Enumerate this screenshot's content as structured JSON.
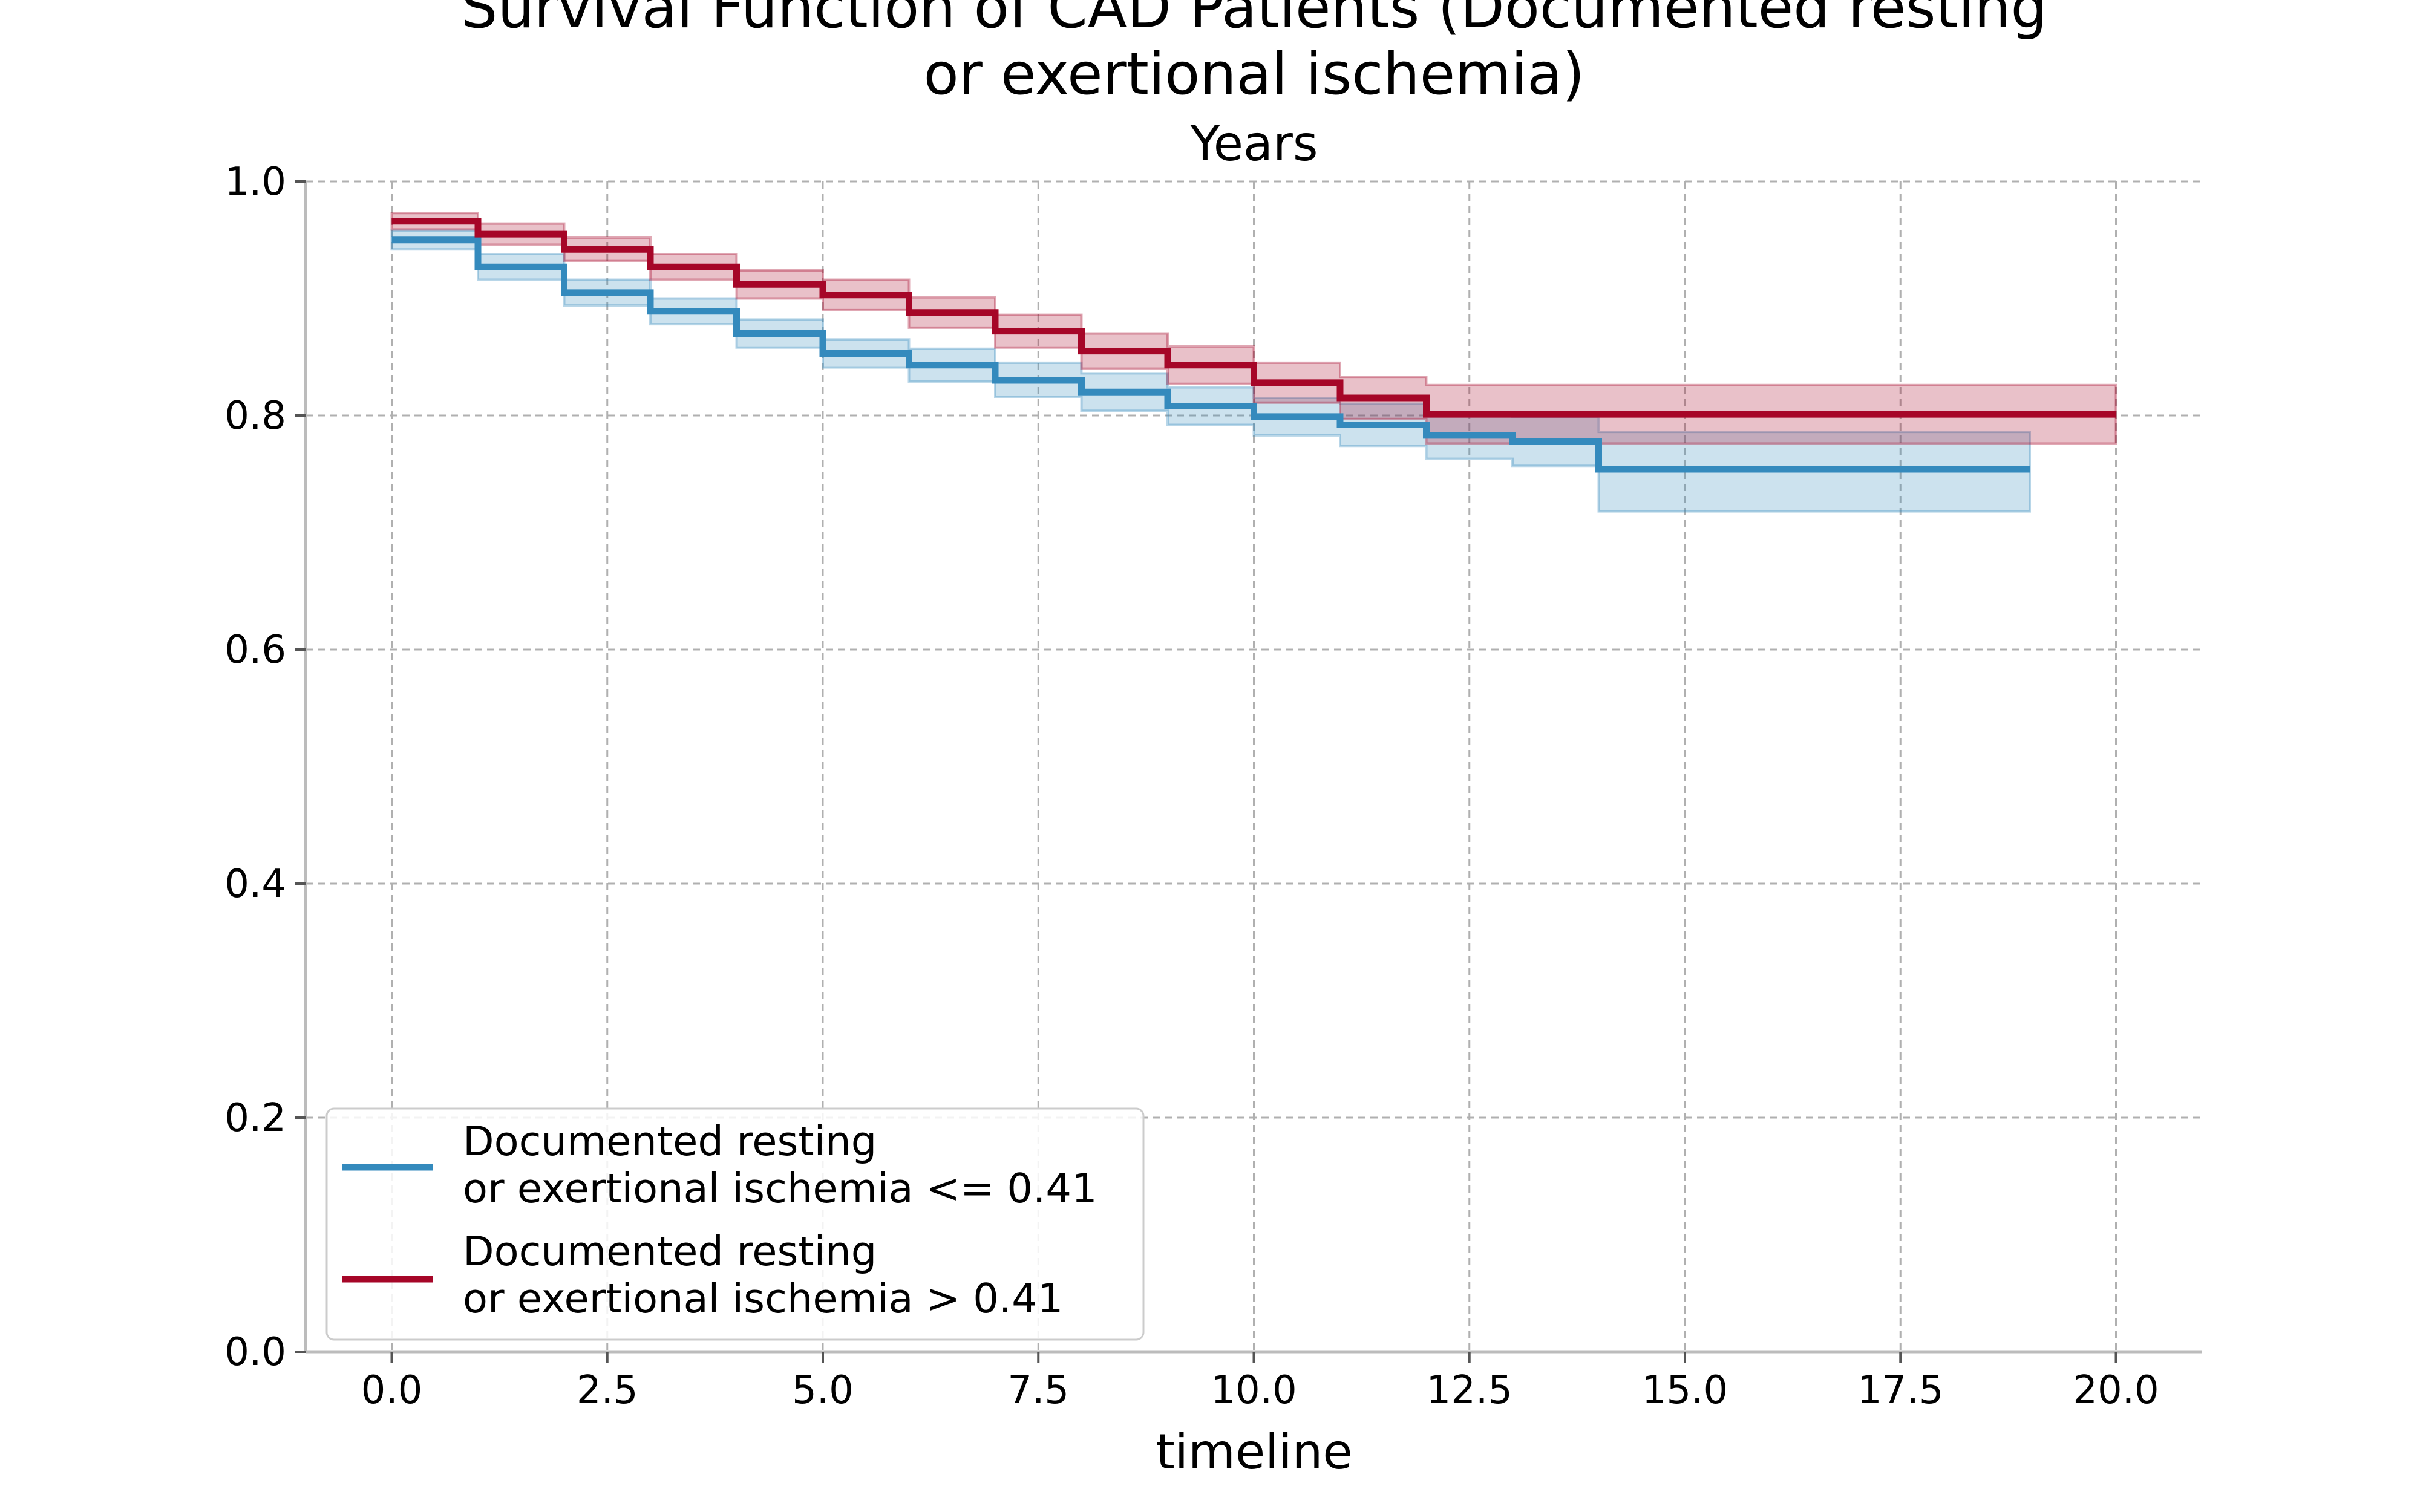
{
  "chart_data": {
    "type": "line",
    "title_lines": [
      "Survival Function of CAD Patients (Documented resting",
      "or exertional ischemia)"
    ],
    "subtitle": "Years",
    "xlabel": "timeline",
    "ylabel": "",
    "xlim": [
      -1,
      21
    ],
    "ylim": [
      0,
      1.0
    ],
    "xticks": [
      0.0,
      2.5,
      5.0,
      7.5,
      10.0,
      12.5,
      15.0,
      17.5,
      20.0
    ],
    "xtick_labels": [
      "0.0",
      "2.5",
      "5.0",
      "7.5",
      "10.0",
      "12.5",
      "15.0",
      "17.5",
      "20.0"
    ],
    "yticks": [
      0.0,
      0.2,
      0.4,
      0.6,
      0.8,
      1.0
    ],
    "ytick_labels": [
      "0.0",
      "0.2",
      "0.4",
      "0.6",
      "0.8",
      "1.0"
    ],
    "grid": true,
    "legend_position": "lower-left",
    "series": [
      {
        "name": "Documented resting\nor exertional ischemia <= 0.41",
        "color": "#348abd",
        "x": [
          0,
          1,
          2,
          3,
          4,
          5,
          6,
          7,
          8,
          9,
          10,
          11,
          12,
          13,
          14,
          19
        ],
        "y": [
          0.95,
          0.927,
          0.905,
          0.889,
          0.87,
          0.853,
          0.843,
          0.83,
          0.82,
          0.808,
          0.799,
          0.792,
          0.783,
          0.778,
          0.754,
          0.754
        ],
        "ci_lower": [
          0.942,
          0.916,
          0.894,
          0.878,
          0.858,
          0.841,
          0.829,
          0.816,
          0.804,
          0.792,
          0.783,
          0.774,
          0.763,
          0.757,
          0.718,
          0.718
        ],
        "ci_upper": [
          0.958,
          0.938,
          0.916,
          0.9,
          0.882,
          0.865,
          0.857,
          0.845,
          0.836,
          0.824,
          0.815,
          0.81,
          0.803,
          0.799,
          0.786,
          0.786
        ]
      },
      {
        "name": "Documented resting\nor exertional ischemia > 0.41",
        "color": "#a60628",
        "x": [
          0,
          1,
          2,
          3,
          4,
          5,
          6,
          7,
          8,
          9,
          10,
          11,
          12,
          20
        ],
        "y": [
          0.966,
          0.955,
          0.942,
          0.927,
          0.912,
          0.903,
          0.888,
          0.872,
          0.855,
          0.843,
          0.828,
          0.815,
          0.801,
          0.801
        ],
        "ci_lower": [
          0.959,
          0.946,
          0.932,
          0.916,
          0.9,
          0.89,
          0.875,
          0.858,
          0.84,
          0.827,
          0.811,
          0.797,
          0.776,
          0.776
        ],
        "ci_upper": [
          0.973,
          0.964,
          0.952,
          0.938,
          0.924,
          0.916,
          0.901,
          0.886,
          0.87,
          0.859,
          0.845,
          0.833,
          0.826,
          0.826
        ]
      }
    ]
  }
}
